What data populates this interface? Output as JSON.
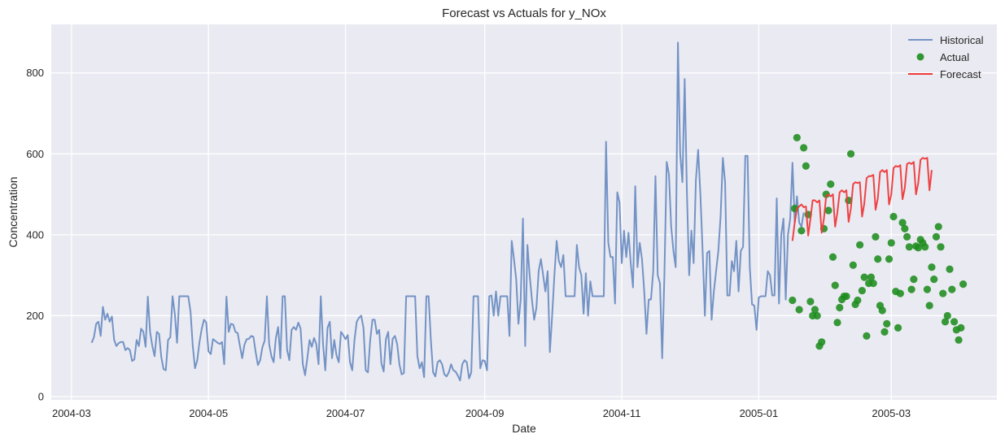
{
  "chart_data": {
    "type": "line",
    "title": "Forecast vs Actuals for y_NOx",
    "xlabel": "Date",
    "ylabel": "Concentration",
    "xlim": [
      "2004-02-21",
      "2005-04-17"
    ],
    "ylim": [
      -8,
      920
    ],
    "grid": true,
    "legend_position": "top-right",
    "x_ticks": [
      {
        "date": "2004-03-01",
        "label": "2004-03"
      },
      {
        "date": "2004-05-01",
        "label": "2004-05"
      },
      {
        "date": "2004-07-01",
        "label": "2004-07"
      },
      {
        "date": "2004-09-01",
        "label": "2004-09"
      },
      {
        "date": "2004-11-01",
        "label": "2004-11"
      },
      {
        "date": "2005-01-01",
        "label": "2005-01"
      },
      {
        "date": "2005-03-01",
        "label": "2005-03"
      }
    ],
    "y_ticks": [
      0,
      200,
      400,
      600,
      800
    ],
    "colors": {
      "historical": "#7393c5",
      "actual": "#1e8c1e",
      "forecast": "#ee3a3a",
      "plot_bg": "#eaeaf2",
      "grid": "#ffffff"
    },
    "series": [
      {
        "name": "Historical",
        "kind": "line",
        "start_date": "2004-03-10",
        "step_days": 1,
        "values": [
          133,
          147,
          180,
          185,
          150,
          222,
          190,
          205,
          185,
          198,
          140,
          125,
          132,
          135,
          135,
          115,
          120,
          115,
          88,
          92,
          140,
          125,
          168,
          160,
          123,
          247,
          160,
          125,
          100,
          160,
          155,
          97,
          68,
          65,
          140,
          147,
          248,
          205,
          133,
          248,
          248,
          248,
          248,
          248,
          210,
          125,
          70,
          90,
          135,
          168,
          190,
          183,
          112,
          105,
          142,
          138,
          133,
          130,
          135,
          80,
          247,
          160,
          180,
          178,
          160,
          157,
          125,
          95,
          128,
          142,
          143,
          150,
          148,
          110,
          78,
          90,
          122,
          138,
          248,
          130,
          100,
          85,
          145,
          172,
          95,
          248,
          248,
          115,
          90,
          165,
          172,
          165,
          183,
          168,
          80,
          53,
          95,
          140,
          123,
          145,
          130,
          80,
          248,
          130,
          65,
          170,
          185,
          95,
          140,
          102,
          85,
          160,
          152,
          142,
          152,
          85,
          65,
          140,
          185,
          195,
          200,
          170,
          65,
          60,
          140,
          190,
          190,
          155,
          165,
          82,
          62,
          142,
          160,
          80,
          143,
          150,
          130,
          80,
          55,
          58,
          248,
          248,
          248,
          248,
          248,
          100,
          70,
          85,
          48,
          248,
          248,
          140,
          60,
          50,
          85,
          90,
          80,
          55,
          50,
          60,
          80,
          65,
          62,
          52,
          40,
          80,
          90,
          85,
          45,
          60,
          248,
          248,
          248,
          70,
          90,
          88,
          65,
          248,
          250,
          200,
          260,
          200,
          248,
          248,
          248,
          248,
          150,
          385,
          340,
          290,
          180,
          240,
          440,
          125,
          375,
          300,
          240,
          190,
          220,
          310,
          340,
          300,
          260,
          310,
          110,
          200,
          300,
          385,
          335,
          320,
          350,
          248,
          248,
          248,
          248,
          248,
          375,
          320,
          300,
          205,
          305,
          200,
          285,
          248,
          248,
          248,
          248,
          248,
          248,
          630,
          380,
          345,
          345,
          230,
          505,
          480,
          330,
          410,
          345,
          405,
          330,
          270,
          520,
          320,
          380,
          340,
          260,
          155,
          240,
          240,
          310,
          545,
          300,
          280,
          95,
          305,
          580,
          550,
          420,
          360,
          320,
          875,
          600,
          530,
          785,
          505,
          300,
          410,
          330,
          535,
          610,
          500,
          360,
          200,
          355,
          360,
          190,
          260,
          310,
          360,
          445,
          590,
          530,
          250,
          250,
          335,
          310,
          385,
          260,
          360,
          370,
          595,
          595,
          320,
          228,
          225,
          165,
          245,
          248,
          248,
          248,
          310,
          300,
          250,
          250,
          490,
          230,
          400,
          440,
          240,
          400,
          440,
          578,
          430,
          495,
          430,
          420,
          455
        ]
      },
      {
        "name": "Actual",
        "kind": "scatter",
        "start_date": "2005-01-16",
        "step_days": 1,
        "values": [
          238,
          465,
          640,
          215,
          410,
          615,
          570,
          450,
          235,
          200,
          215,
          200,
          125,
          135,
          415,
          500,
          460,
          525,
          345,
          275,
          183,
          220,
          240,
          248,
          248,
          485,
          600,
          325,
          228,
          238,
          375,
          262,
          295,
          150,
          280,
          295,
          280,
          395,
          340,
          225,
          213,
          160,
          180,
          340,
          380,
          445,
          260,
          170,
          255,
          430,
          415,
          395,
          370,
          265,
          290,
          372,
          368,
          388,
          380,
          370,
          265,
          225,
          320,
          290,
          395,
          420,
          370,
          255,
          185,
          200,
          315,
          265,
          185,
          165,
          140,
          170,
          278
        ]
      },
      {
        "name": "Forecast",
        "kind": "line",
        "start_date": "2005-01-16",
        "step_days": 1,
        "values": [
          385,
          430,
          465,
          470,
          475,
          468,
          470,
          398,
          440,
          485,
          485,
          480,
          485,
          405,
          440,
          495,
          500,
          495,
          500,
          420,
          455,
          505,
          510,
          505,
          510,
          432,
          465,
          525,
          530,
          528,
          530,
          445,
          478,
          540,
          545,
          545,
          548,
          462,
          490,
          555,
          560,
          555,
          560,
          475,
          500,
          565,
          570,
          568,
          572,
          488,
          515,
          575,
          578,
          575,
          580,
          500,
          528,
          585,
          590,
          588,
          590,
          510,
          560
        ]
      }
    ]
  }
}
